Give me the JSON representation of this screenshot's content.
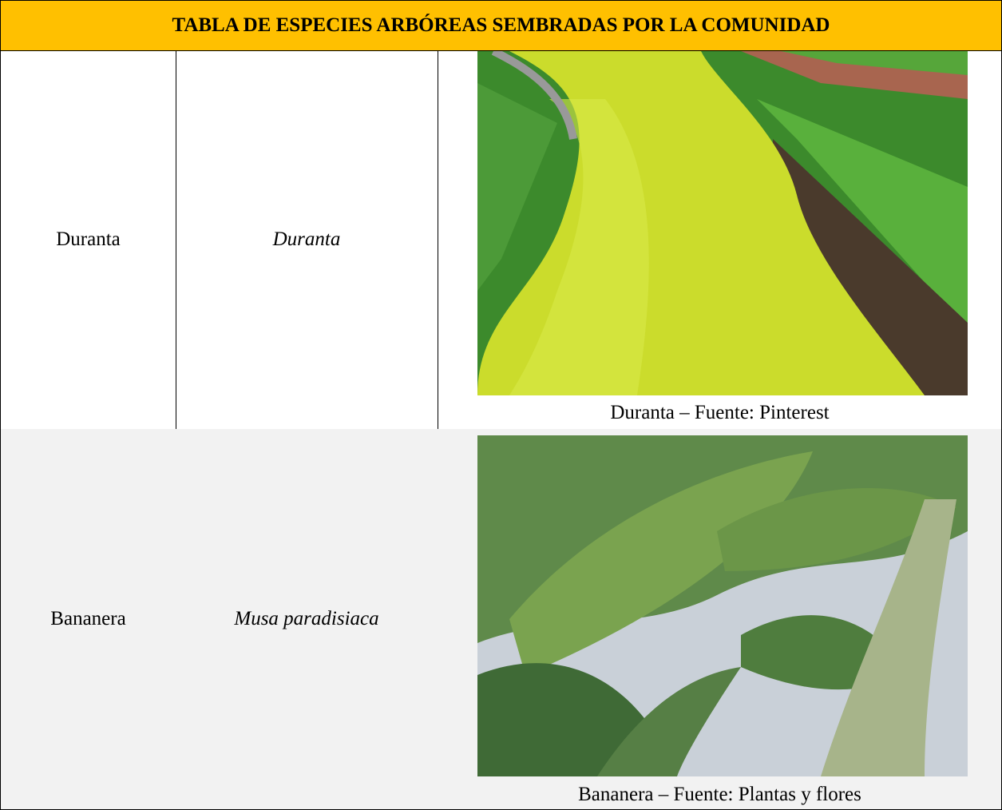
{
  "table": {
    "title": "TABLA DE ESPECIES ARBÓREAS SEMBRADAS POR LA COMUNIDAD",
    "rows": [
      {
        "common_name": "Duranta",
        "scientific_name": "Duranta",
        "image_caption": "Duranta – Fuente: Pinterest"
      },
      {
        "common_name": "Bananera",
        "scientific_name": "Musa paradisiaca",
        "image_caption": "Bananera – Fuente: Plantas y flores"
      }
    ]
  }
}
